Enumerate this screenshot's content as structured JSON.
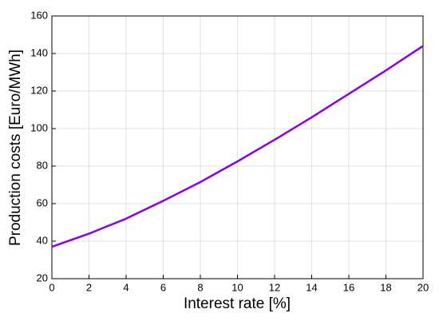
{
  "chart_data": {
    "type": "line",
    "x_label": "Interest rate [%]",
    "y_label": "Production costs [Euro/MWh]",
    "x": [
      0,
      2,
      4,
      6,
      8,
      10,
      12,
      14,
      16,
      18,
      20
    ],
    "values": [
      37,
      44,
      52,
      61.5,
      71.5,
      82.5,
      94,
      106,
      118.5,
      131,
      144
    ],
    "color": "#8a00e6",
    "xlim": [
      0,
      20
    ],
    "xticks": [
      0,
      2,
      4,
      6,
      8,
      10,
      12,
      14,
      16,
      18,
      20
    ],
    "ylim": [
      20,
      160
    ],
    "yticks": [
      20,
      40,
      60,
      80,
      100,
      120,
      140,
      160
    ],
    "grid": true
  }
}
